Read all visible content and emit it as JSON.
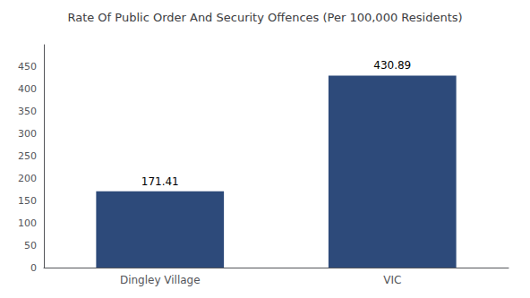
{
  "chart_data": {
    "type": "bar",
    "title": "Rate Of Public Order And Security Offences (Per 100,000 Residents)",
    "categories": [
      "Dingley Village",
      "VIC"
    ],
    "values": [
      171.41,
      430.89
    ],
    "color": "#2d4a7a",
    "ylim": [
      0,
      500
    ],
    "yticks": [
      0,
      50,
      100,
      150,
      200,
      250,
      300,
      350,
      400,
      450
    ],
    "grid": false,
    "data_labels": true
  }
}
